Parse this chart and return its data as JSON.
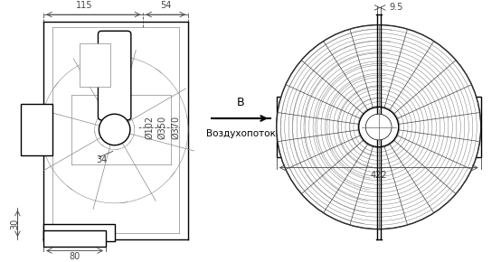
{
  "bg_color": "#ffffff",
  "line_color": "#000000",
  "gray_color": "#888888",
  "light_gray": "#cccccc",
  "dim_color": "#333333",
  "arrow_label": "B",
  "airflow_label": "Воздухопоток",
  "dim_115": "115",
  "dim_54": "54",
  "dim_30": "30",
  "dim_80": "80",
  "dim_34": "34",
  "dim_102": "Ø102",
  "dim_350": "Ø350",
  "dim_370": "Ø370",
  "dim_9_5": "9.5",
  "dim_422": "422",
  "fig_width": 5.54,
  "fig_height": 2.9
}
